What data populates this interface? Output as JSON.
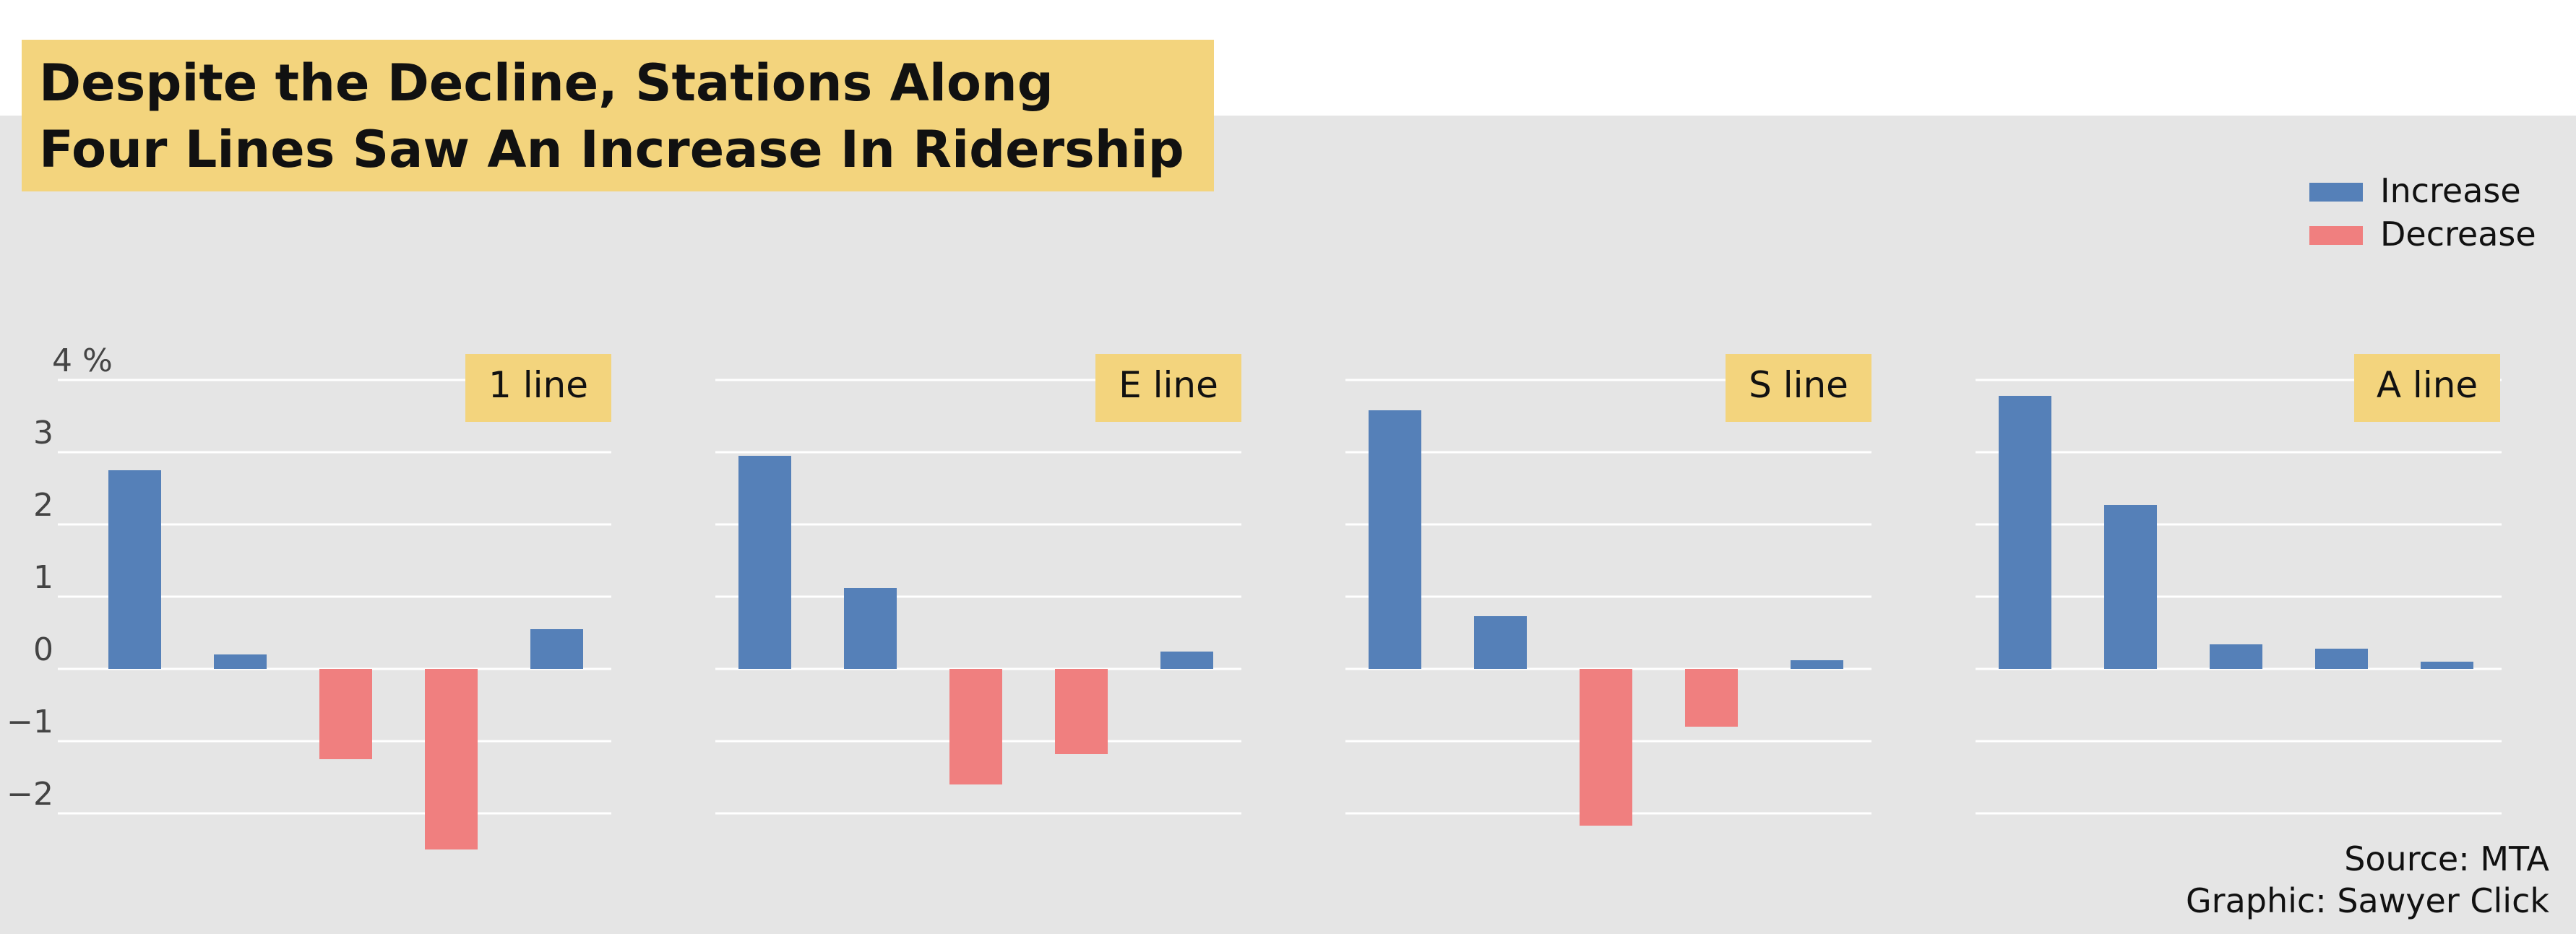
{
  "title": {
    "line1": "Despite the Decline, Stations Along",
    "line2": "Four Lines Saw An Increase In Ridership"
  },
  "legend": [
    {
      "label": "Increase",
      "color": "#5580b8"
    },
    {
      "label": "Decrease",
      "color": "#f07f7f"
    }
  ],
  "source": {
    "line1": "Source: MTA",
    "line2": "Graphic: Sawyer Click"
  },
  "colors": {
    "increase": "#5580b8",
    "decrease": "#f07f7f",
    "label_box": "#f3d47d",
    "panel_bg": "#e5e5e5",
    "grid": "#ffffff"
  },
  "chart_data": {
    "type": "bar",
    "ylim": [
      -2.5,
      4
    ],
    "y_ticks": [
      4,
      3,
      2,
      1,
      0,
      -1,
      -2
    ],
    "y_tick_labels": [
      "4 %",
      "3",
      "2",
      "1",
      "0",
      "−1",
      "−2"
    ],
    "grid": true,
    "legend_position": "top-right",
    "panels": [
      {
        "label": "1 line",
        "values": [
          2.75,
          0.2,
          -1.25,
          -2.5,
          0.55
        ]
      },
      {
        "label": "E line",
        "values": [
          2.95,
          1.12,
          -1.6,
          -1.18,
          0.24
        ]
      },
      {
        "label": "S line",
        "values": [
          3.58,
          0.73,
          -2.17,
          -0.8,
          0.12
        ]
      },
      {
        "label": "A line",
        "values": [
          3.78,
          2.27,
          0.34,
          0.28,
          0.1
        ]
      }
    ]
  }
}
